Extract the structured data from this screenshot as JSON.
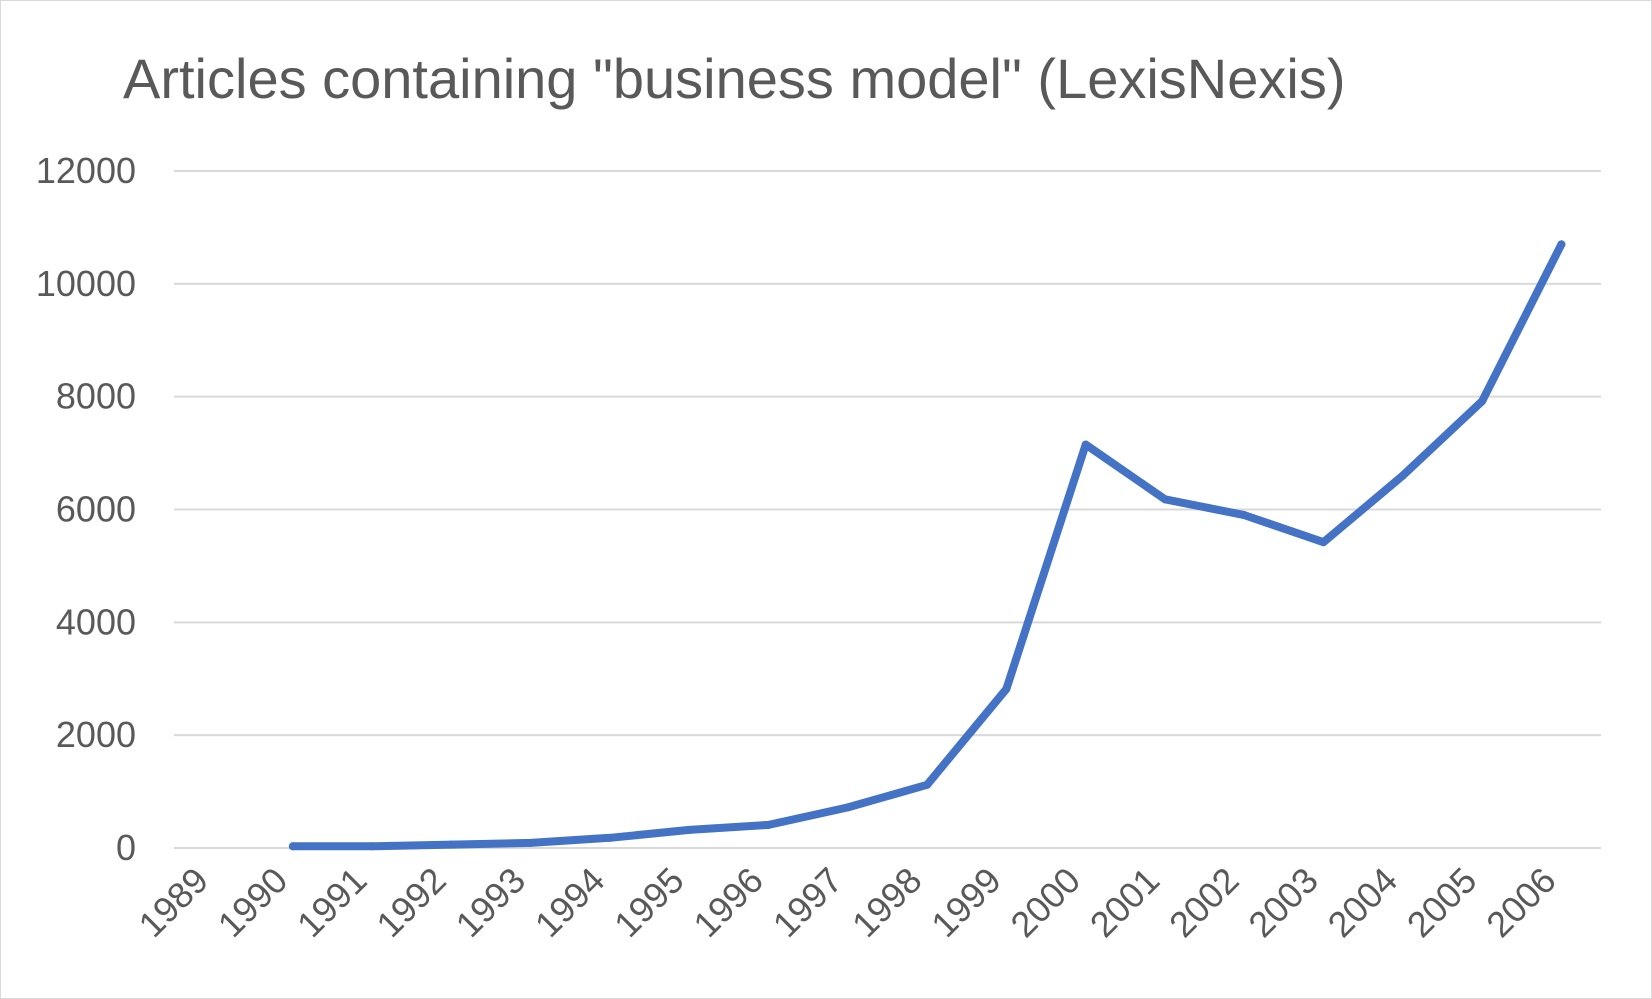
{
  "chart_data": {
    "type": "line",
    "title": "Articles containing \"business model\" (LexisNexis)",
    "xlabel": "",
    "ylabel": "",
    "categories": [
      "1989",
      "1990",
      "1991",
      "1992",
      "1993",
      "1994",
      "1995",
      "1996",
      "1997",
      "1998",
      "1999",
      "2000",
      "2001",
      "2002",
      "2003",
      "2004",
      "2005",
      "2006"
    ],
    "series": [
      {
        "values": [
          null,
          30,
          30,
          60,
          90,
          180,
          320,
          410,
          720,
          1120,
          2820,
          7150,
          6180,
          5900,
          5420,
          6600,
          7920,
          10700
        ],
        "color": "#4472c4"
      }
    ],
    "ylim": [
      0,
      12000
    ],
    "yticks": [
      0,
      2000,
      4000,
      6000,
      8000,
      10000,
      12000
    ],
    "grid": true,
    "legend": "none"
  }
}
